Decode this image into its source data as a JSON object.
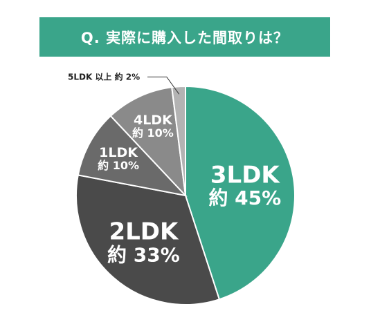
{
  "title": "Q. 実際に購入した間取りは？",
  "chart_data": {
    "type": "pie",
    "title": "Q. 実際に購入した間取りは？",
    "start": "12 o'clock, clockwise",
    "slices": [
      {
        "name": "3LDK",
        "pct_label": "約 45%",
        "value": 45,
        "color": "#3aa58a"
      },
      {
        "name": "2LDK",
        "pct_label": "約 33%",
        "value": 33,
        "color": "#4a4a4a"
      },
      {
        "name": "1LDK",
        "pct_label": "約 10%",
        "value": 10,
        "color": "#6a6a6a"
      },
      {
        "name": "4LDK",
        "pct_label": "約 10%",
        "value": 10,
        "color": "#8a8a8a"
      },
      {
        "name": "5LDK 以上",
        "pct_label": "約 2%",
        "value": 2,
        "color": "#b3b3b3"
      }
    ]
  }
}
